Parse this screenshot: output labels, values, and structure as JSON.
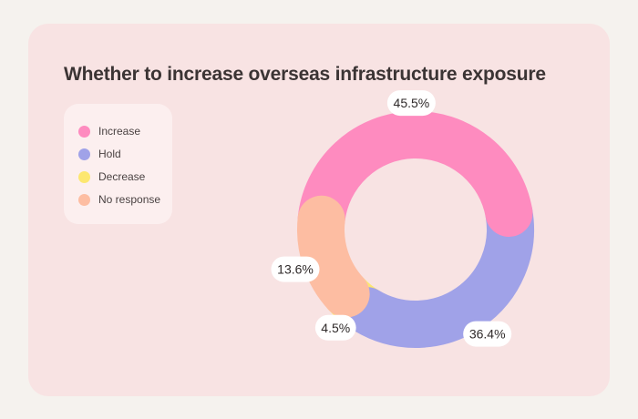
{
  "chart_data": {
    "type": "donut",
    "title": "Whether to increase overseas infrastructure exposure",
    "categories": [
      "Increase",
      "Hold",
      "Decrease",
      "No response"
    ],
    "values": [
      45.5,
      36.4,
      4.5,
      13.6
    ],
    "value_labels": [
      "45.5%",
      "36.4%",
      "4.5%",
      "13.6%"
    ],
    "colors": [
      "#fe8bbf",
      "#a0a2e8",
      "#fde770",
      "#fdbda2"
    ],
    "legend_position": "top-left",
    "start_angle_deg": -10,
    "direction": "clockwise",
    "slice_order": [
      "Hold",
      "Decrease",
      "No response",
      "Increase"
    ]
  }
}
